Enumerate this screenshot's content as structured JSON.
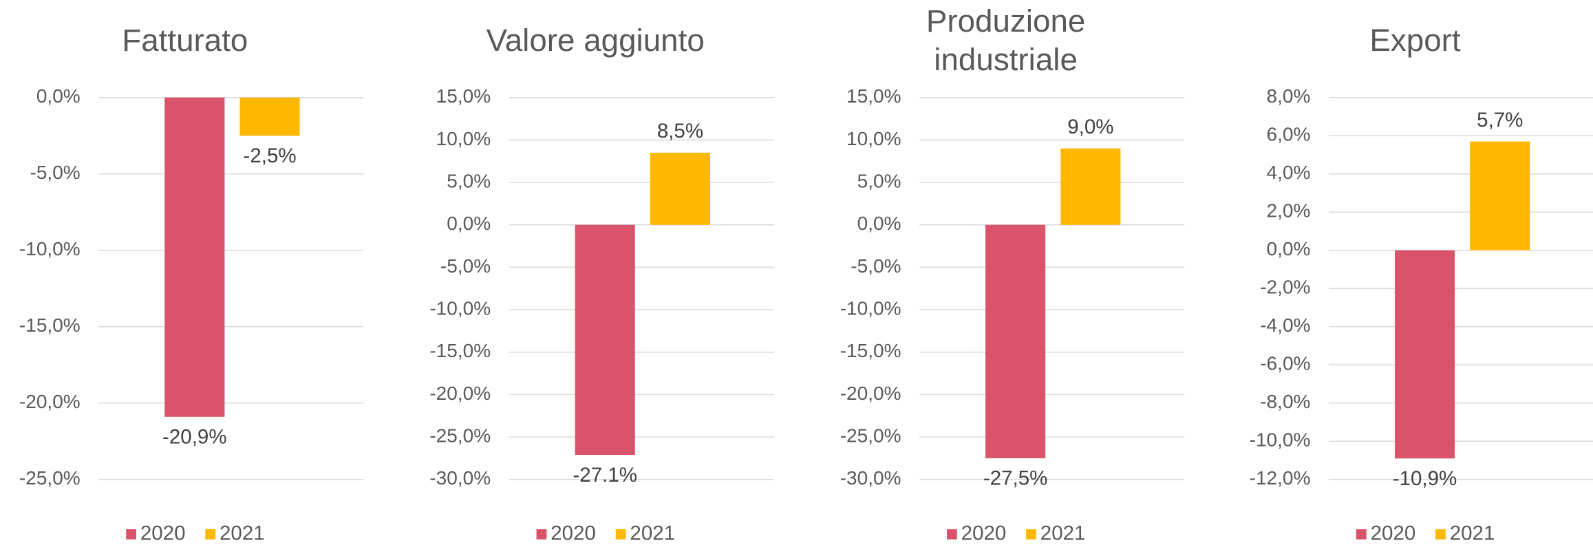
{
  "chart_data": [
    {
      "type": "bar",
      "title": "Fatturato",
      "series": [
        {
          "name": "2020",
          "color": "#d9546b",
          "values": [
            -20.9
          ],
          "value_labels": [
            "-20,9%"
          ]
        },
        {
          "name": "2021",
          "color": "#ffb800",
          "values": [
            -2.5
          ],
          "value_labels": [
            "-2,5%"
          ]
        }
      ],
      "ylim": [
        -25,
        0
      ],
      "yticks": [
        {
          "value": 0,
          "label": "0,0%"
        },
        {
          "value": -5,
          "label": "-5,0%"
        },
        {
          "value": -10,
          "label": "-10,0%"
        },
        {
          "value": -15,
          "label": "-15,0%"
        },
        {
          "value": -20,
          "label": "-20,0%"
        },
        {
          "value": -25,
          "label": "-25,0%"
        }
      ],
      "grid": true,
      "legend": "bottom"
    },
    {
      "type": "bar",
      "title": "Valore aggiunto",
      "series": [
        {
          "name": "2020",
          "color": "#d9546b",
          "values": [
            -27.1
          ],
          "value_labels": [
            "-27.1%"
          ]
        },
        {
          "name": "2021",
          "color": "#ffb800",
          "values": [
            8.5
          ],
          "value_labels": [
            "8,5%"
          ]
        }
      ],
      "ylim": [
        -30,
        15
      ],
      "yticks": [
        {
          "value": 15,
          "label": "15,0%"
        },
        {
          "value": 10,
          "label": "10,0%"
        },
        {
          "value": 5,
          "label": "5,0%"
        },
        {
          "value": 0,
          "label": "0,0%"
        },
        {
          "value": -5,
          "label": "-5,0%"
        },
        {
          "value": -10,
          "label": "-10,0%"
        },
        {
          "value": -15,
          "label": "-15,0%"
        },
        {
          "value": -20,
          "label": "-20,0%"
        },
        {
          "value": -25,
          "label": "-25,0%"
        },
        {
          "value": -30,
          "label": "-30,0%"
        }
      ],
      "grid": true,
      "legend": "bottom"
    },
    {
      "type": "bar",
      "title": "Produzione industriale",
      "series": [
        {
          "name": "2020",
          "color": "#d9546b",
          "values": [
            -27.5
          ],
          "value_labels": [
            "-27,5%"
          ]
        },
        {
          "name": "2021",
          "color": "#ffb800",
          "values": [
            9.0
          ],
          "value_labels": [
            "9,0%"
          ]
        }
      ],
      "ylim": [
        -30,
        15
      ],
      "yticks": [
        {
          "value": 15,
          "label": "15,0%"
        },
        {
          "value": 10,
          "label": "10,0%"
        },
        {
          "value": 5,
          "label": "5,0%"
        },
        {
          "value": 0,
          "label": "0,0%"
        },
        {
          "value": -5,
          "label": "-5,0%"
        },
        {
          "value": -10,
          "label": "-10,0%"
        },
        {
          "value": -15,
          "label": "-15,0%"
        },
        {
          "value": -20,
          "label": "-20,0%"
        },
        {
          "value": -25,
          "label": "-25,0%"
        },
        {
          "value": -30,
          "label": "-30,0%"
        }
      ],
      "grid": true,
      "legend": "bottom"
    },
    {
      "type": "bar",
      "title": "Export",
      "series": [
        {
          "name": "2020",
          "color": "#d9546b",
          "values": [
            -10.9
          ],
          "value_labels": [
            "-10,9%"
          ]
        },
        {
          "name": "2021",
          "color": "#ffb800",
          "values": [
            5.7
          ],
          "value_labels": [
            "5,7%"
          ]
        }
      ],
      "ylim": [
        -12,
        8
      ],
      "yticks": [
        {
          "value": 8,
          "label": "8,0%"
        },
        {
          "value": 6,
          "label": "6,0%"
        },
        {
          "value": 4,
          "label": "4,0%"
        },
        {
          "value": 2,
          "label": "2,0%"
        },
        {
          "value": 0,
          "label": "0,0%"
        },
        {
          "value": -2,
          "label": "-2,0%"
        },
        {
          "value": -4,
          "label": "-4,0%"
        },
        {
          "value": -6,
          "label": "-6,0%"
        },
        {
          "value": -8,
          "label": "-8,0%"
        },
        {
          "value": -10,
          "label": "-10,0%"
        },
        {
          "value": -12,
          "label": "-12,0%"
        }
      ],
      "grid": true,
      "legend": "bottom"
    }
  ]
}
